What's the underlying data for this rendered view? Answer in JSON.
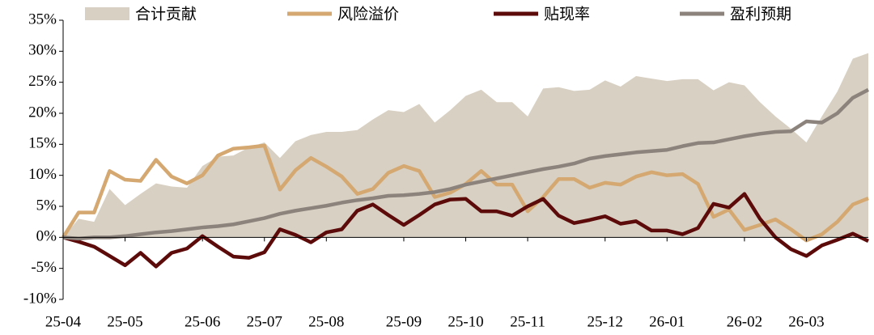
{
  "chart_data": {
    "type": "line",
    "categories": [
      "25-04",
      null,
      null,
      null,
      "25-05",
      null,
      null,
      null,
      null,
      "25-06",
      null,
      null,
      null,
      "25-07",
      null,
      null,
      null,
      "25-08",
      null,
      null,
      null,
      null,
      "25-09",
      null,
      null,
      null,
      "25-10",
      null,
      null,
      null,
      "25-11",
      null,
      null,
      null,
      null,
      "25-12",
      null,
      null,
      null,
      "26-01",
      null,
      null,
      null,
      null,
      "26-02",
      null,
      null,
      null,
      "26-03",
      null,
      null,
      null,
      null
    ],
    "series": [
      {
        "name": "合计贡献",
        "type": "area",
        "color": "#d8d0c2",
        "values": [
          0,
          3,
          2.5,
          7.8,
          5.2,
          7,
          8.7,
          8.2,
          8,
          11.5,
          13,
          13.2,
          14.5,
          15.3,
          12.8,
          15.5,
          16.5,
          17,
          17,
          17.3,
          19,
          20.5,
          20.2,
          21.5,
          18.5,
          20.5,
          22.8,
          23.8,
          21.8,
          21.8,
          19.5,
          24,
          24.2,
          23.6,
          23.8,
          25.3,
          24.3,
          26,
          25.6,
          25.2,
          25.5,
          25.5,
          23.7,
          25,
          24.5,
          21.8,
          19.5,
          17.5,
          15.3,
          19.5,
          23.5,
          28.8,
          29.7
        ]
      },
      {
        "name": "风险溢价",
        "type": "line",
        "color": "#d4a870",
        "values": [
          0,
          4,
          4,
          10.7,
          9.3,
          9.1,
          12.5,
          9.8,
          8.7,
          10,
          13.2,
          14.3,
          14.5,
          14.8,
          7.7,
          10.8,
          12.8,
          11.4,
          9.8,
          7,
          7.8,
          10.4,
          11.5,
          10.7,
          6.5,
          7.2,
          8.6,
          10.7,
          8.5,
          8.5,
          4.2,
          6.5,
          9.4,
          9.4,
          8,
          8.8,
          8.5,
          9.8,
          10.5,
          10,
          10.2,
          8.6,
          3.3,
          4.5,
          1.2,
          2,
          2.9,
          1.3,
          -0.5,
          0.5,
          2.5,
          5.3,
          6.3
        ]
      },
      {
        "name": "贴现率",
        "type": "line",
        "color": "#5c0a0a",
        "values": [
          0,
          -0.7,
          -1.5,
          -3,
          -4.5,
          -2.5,
          -4.7,
          -2.5,
          -1.8,
          0.2,
          -1.5,
          -3.1,
          -3.3,
          -2.4,
          1.3,
          0.4,
          -0.8,
          0.8,
          1.3,
          4.3,
          5.3,
          3.6,
          2,
          3.6,
          5.3,
          6.1,
          6.2,
          4.2,
          4.2,
          3.5,
          5,
          6.2,
          3.5,
          2.3,
          2.8,
          3.4,
          2.2,
          2.6,
          1.1,
          1.1,
          0.5,
          1.5,
          5.4,
          4.8,
          7,
          3,
          0,
          -1.9,
          -3,
          -1.3,
          -0.4,
          0.6,
          -0.6
        ]
      },
      {
        "name": "盈利预期",
        "type": "line",
        "color": "#8c837d",
        "values": [
          0,
          -0.2,
          0,
          0,
          0.2,
          0.5,
          0.8,
          1,
          1.3,
          1.6,
          1.8,
          2.1,
          2.6,
          3.1,
          3.8,
          4.3,
          4.7,
          5.1,
          5.6,
          6,
          6.3,
          6.7,
          6.8,
          7,
          7.3,
          7.8,
          8.5,
          9,
          9.5,
          10,
          10.5,
          11,
          11.4,
          11.9,
          12.7,
          13.1,
          13.4,
          13.7,
          13.9,
          14.1,
          14.7,
          15.2,
          15.3,
          15.8,
          16.3,
          16.7,
          17,
          17.1,
          18.7,
          18.5,
          20,
          22.5,
          23.8
        ]
      }
    ],
    "ylim": [
      -10,
      35
    ],
    "yticks": [
      {
        "value": -10,
        "label": "-10%"
      },
      {
        "value": -5,
        "label": "-5%"
      },
      {
        "value": 0,
        "label": "0%"
      },
      {
        "value": 5,
        "label": "5%"
      },
      {
        "value": 10,
        "label": "10%"
      },
      {
        "value": 15,
        "label": "15%"
      },
      {
        "value": 20,
        "label": "20%"
      },
      {
        "value": 25,
        "label": "25%"
      },
      {
        "value": 30,
        "label": "30%"
      },
      {
        "value": 35,
        "label": "35%"
      }
    ],
    "legend": "top"
  }
}
